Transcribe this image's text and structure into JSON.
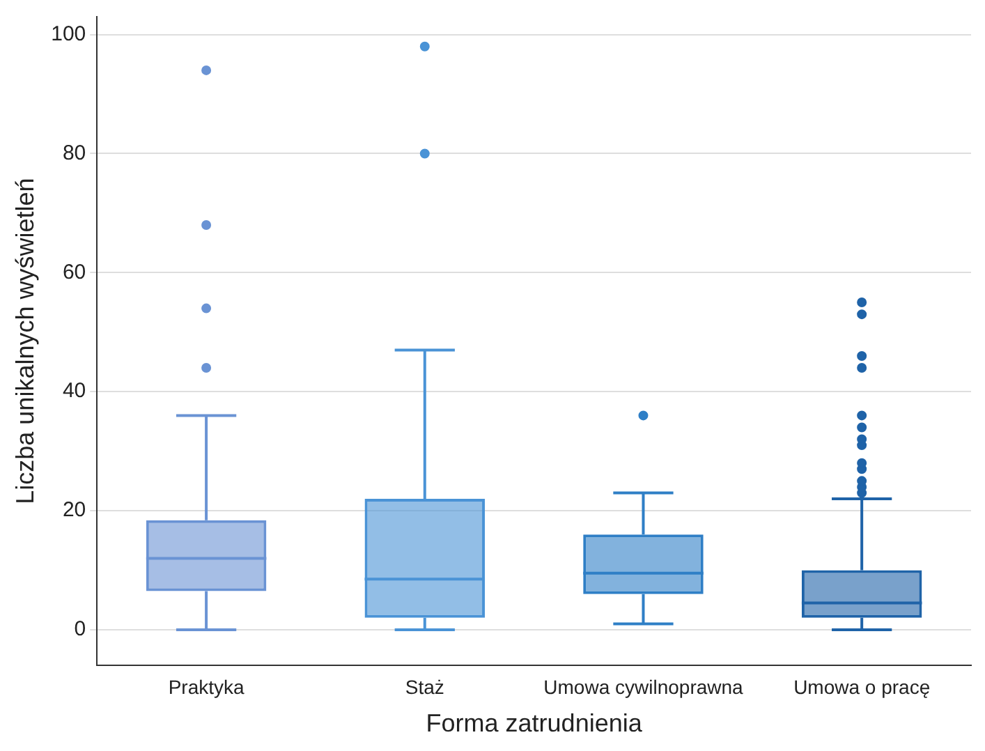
{
  "chart_data": {
    "type": "box",
    "xlabel": "Forma zatrudnienia",
    "ylabel": "Liczba unikalnych wyświetleń",
    "categories": [
      "Praktyka",
      "Staż",
      "Umowa cywilnoprawna",
      "Umowa o pracę"
    ],
    "colors": [
      "#6a93d4",
      "#4a93d6",
      "#2f7fc6",
      "#1f63a8"
    ],
    "boxes": [
      {
        "low": 0,
        "q1": 6.5,
        "median": 12,
        "q3": 18.4,
        "high": 36,
        "outliers": [
          44,
          54,
          68,
          94
        ]
      },
      {
        "low": 0,
        "q1": 2,
        "median": 8.5,
        "q3": 22,
        "high": 47,
        "outliers": [
          80,
          98
        ]
      },
      {
        "low": 1,
        "q1": 6,
        "median": 9.5,
        "q3": 16,
        "high": 23,
        "outliers": [
          36
        ]
      },
      {
        "low": 0,
        "q1": 2,
        "median": 4.5,
        "q3": 10,
        "high": 22,
        "outliers": [
          23,
          24,
          25,
          27,
          28,
          31,
          32,
          34,
          36,
          44,
          46,
          53,
          55
        ]
      }
    ],
    "ylim": [
      -6,
      103
    ],
    "yticks": [
      0,
      20,
      40,
      60,
      80,
      100
    ],
    "grid": "y",
    "legend": false,
    "marker": "circle"
  }
}
